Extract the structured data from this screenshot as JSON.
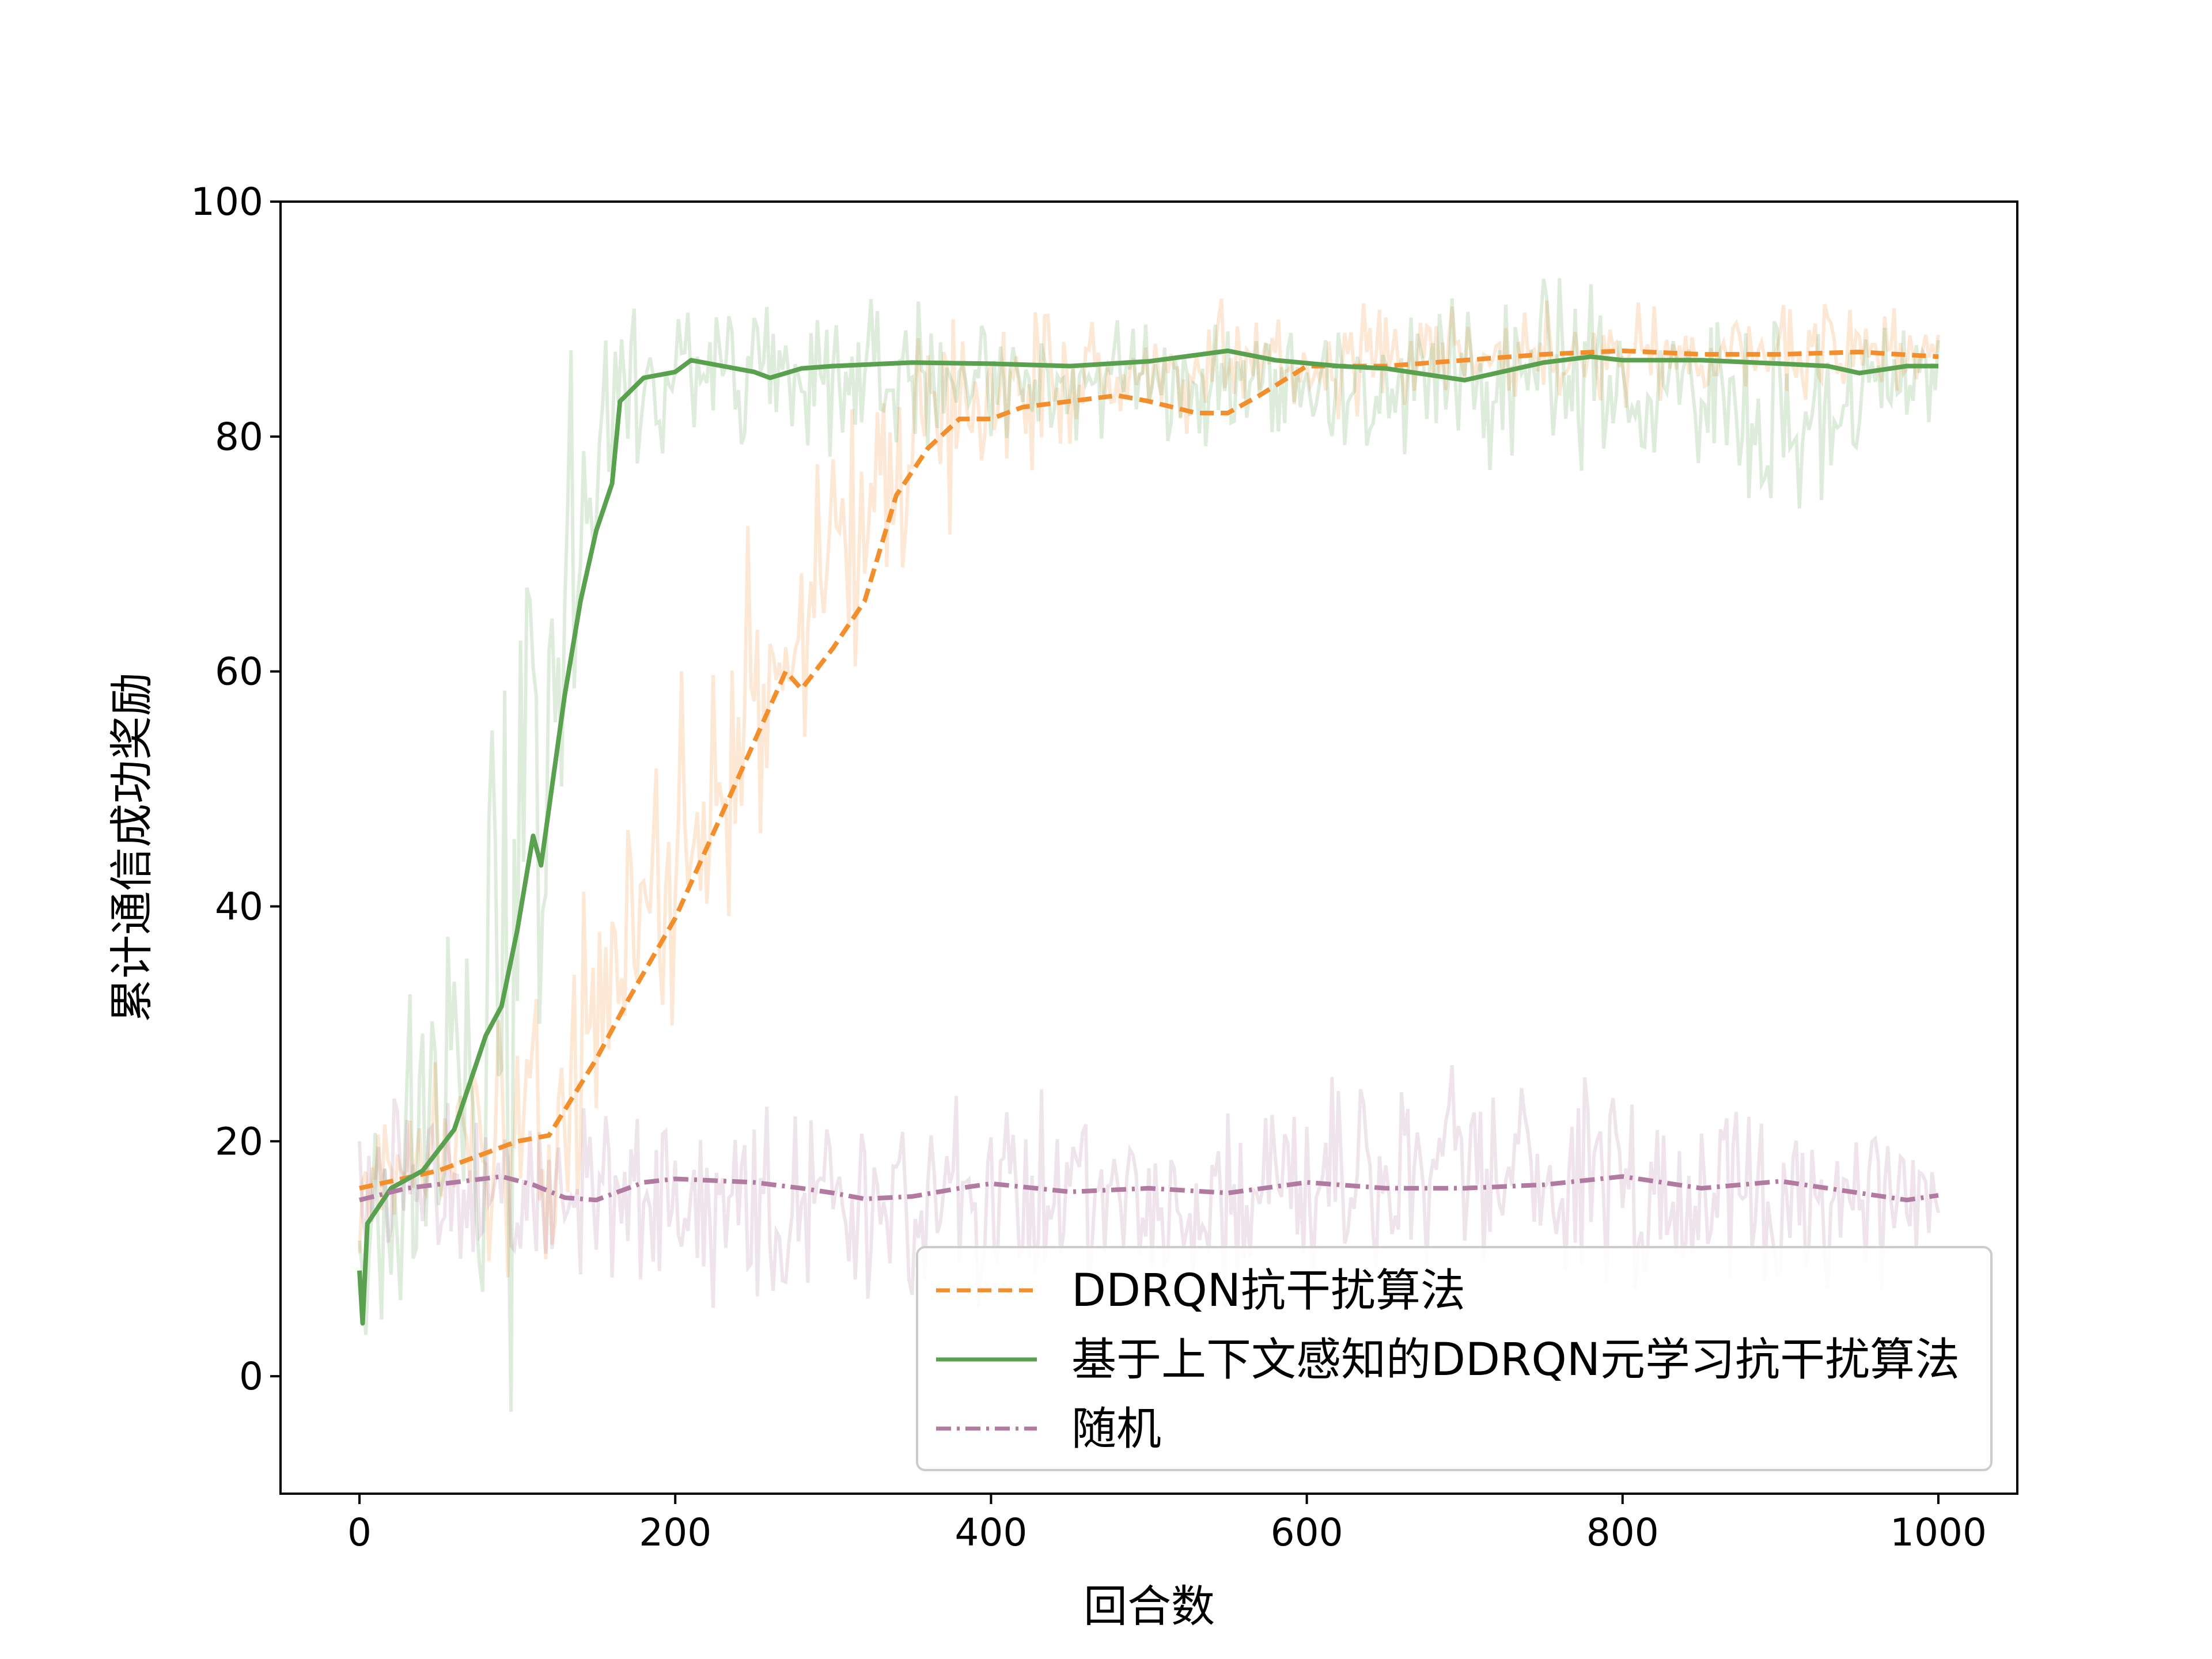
{
  "chart_data": {
    "type": "line",
    "title": "",
    "xlabel": "回合数",
    "ylabel": "累计通信成功奖励",
    "xlim": [
      -50,
      1050
    ],
    "ylim": [
      -10,
      100
    ],
    "xticks": [
      0,
      200,
      400,
      600,
      800,
      1000
    ],
    "yticks": [
      0,
      20,
      40,
      60,
      80,
      100
    ],
    "grid": false,
    "legend_position": "lower-right",
    "series": [
      {
        "name": "DDRQN抗干扰算法",
        "color": "#F28E2B",
        "style": "dashed",
        "smoothed": [
          [
            0,
            16
          ],
          [
            50,
            17.5
          ],
          [
            100,
            20
          ],
          [
            120,
            20.5
          ],
          [
            150,
            27
          ],
          [
            170,
            32
          ],
          [
            200,
            39
          ],
          [
            230,
            48
          ],
          [
            250,
            54
          ],
          [
            270,
            60
          ],
          [
            280,
            58.5
          ],
          [
            300,
            62
          ],
          [
            320,
            66
          ],
          [
            340,
            75
          ],
          [
            360,
            79
          ],
          [
            380,
            81.5
          ],
          [
            400,
            81.5
          ],
          [
            420,
            82.5
          ],
          [
            450,
            83
          ],
          [
            480,
            83.5
          ],
          [
            500,
            83
          ],
          [
            530,
            82
          ],
          [
            550,
            82
          ],
          [
            570,
            83.5
          ],
          [
            600,
            86
          ],
          [
            650,
            86
          ],
          [
            700,
            86.5
          ],
          [
            750,
            87
          ],
          [
            800,
            87.3
          ],
          [
            850,
            87
          ],
          [
            900,
            87
          ],
          [
            950,
            87.2
          ],
          [
            1000,
            86.8
          ]
        ],
        "raw_range": [
          [
            0,
            10,
            22
          ],
          [
            100,
            5,
            35
          ],
          [
            150,
            15,
            45
          ],
          [
            200,
            25,
            60
          ],
          [
            250,
            40,
            75
          ],
          [
            300,
            50,
            85
          ],
          [
            350,
            65,
            90
          ],
          [
            400,
            75,
            92
          ],
          [
            500,
            78,
            92
          ],
          [
            600,
            80,
            92
          ],
          [
            700,
            82,
            92
          ],
          [
            800,
            82,
            92
          ],
          [
            900,
            82,
            92
          ],
          [
            1000,
            83,
            91
          ]
        ]
      },
      {
        "name": "基于上下文感知的DDRQN元学习抗干扰算法",
        "color": "#59A14F",
        "style": "solid",
        "smoothed": [
          [
            0,
            9
          ],
          [
            2,
            4.5
          ],
          [
            5,
            13
          ],
          [
            20,
            16
          ],
          [
            40,
            17.5
          ],
          [
            60,
            21
          ],
          [
            80,
            29
          ],
          [
            90,
            31.5
          ],
          [
            100,
            38
          ],
          [
            110,
            46
          ],
          [
            115,
            43.5
          ],
          [
            130,
            58
          ],
          [
            140,
            66
          ],
          [
            150,
            72
          ],
          [
            160,
            76
          ],
          [
            165,
            83
          ],
          [
            180,
            85
          ],
          [
            200,
            85.5
          ],
          [
            210,
            86.5
          ],
          [
            230,
            86
          ],
          [
            250,
            85.5
          ],
          [
            260,
            85
          ],
          [
            280,
            85.8
          ],
          [
            300,
            86
          ],
          [
            350,
            86.3
          ],
          [
            400,
            86.2
          ],
          [
            450,
            86
          ],
          [
            500,
            86.4
          ],
          [
            550,
            87.3
          ],
          [
            580,
            86.5
          ],
          [
            620,
            86
          ],
          [
            650,
            85.8
          ],
          [
            700,
            84.8
          ],
          [
            750,
            86.3
          ],
          [
            780,
            86.8
          ],
          [
            800,
            86.5
          ],
          [
            850,
            86.5
          ],
          [
            900,
            86.2
          ],
          [
            930,
            86
          ],
          [
            950,
            85.4
          ],
          [
            980,
            86
          ],
          [
            1000,
            86
          ]
        ],
        "raw_range": [
          [
            0,
            0,
            20
          ],
          [
            50,
            5,
            45
          ],
          [
            80,
            -10,
            70
          ],
          [
            110,
            -10,
            80
          ],
          [
            130,
            40,
            93
          ],
          [
            150,
            70,
            93
          ],
          [
            200,
            78,
            93
          ],
          [
            300,
            78,
            93
          ],
          [
            400,
            78,
            92
          ],
          [
            500,
            78,
            92
          ],
          [
            600,
            77,
            92
          ],
          [
            700,
            76,
            93
          ],
          [
            750,
            76,
            98
          ],
          [
            800,
            75,
            93
          ],
          [
            850,
            74,
            93
          ],
          [
            900,
            70,
            92
          ],
          [
            1000,
            79,
            91
          ]
        ]
      },
      {
        "name": "随机",
        "color": "#B07AA1",
        "style": "dashdot",
        "smoothed": [
          [
            0,
            15
          ],
          [
            30,
            16
          ],
          [
            60,
            16.5
          ],
          [
            90,
            17
          ],
          [
            110,
            16.3
          ],
          [
            130,
            15.2
          ],
          [
            150,
            15
          ],
          [
            180,
            16.5
          ],
          [
            200,
            16.8
          ],
          [
            250,
            16.5
          ],
          [
            280,
            16
          ],
          [
            300,
            15.6
          ],
          [
            320,
            15.1
          ],
          [
            350,
            15.3
          ],
          [
            380,
            16
          ],
          [
            400,
            16.4
          ],
          [
            450,
            15.7
          ],
          [
            500,
            16
          ],
          [
            550,
            15.6
          ],
          [
            600,
            16.5
          ],
          [
            650,
            16
          ],
          [
            700,
            16
          ],
          [
            750,
            16.3
          ],
          [
            800,
            17
          ],
          [
            850,
            16
          ],
          [
            900,
            16.6
          ],
          [
            950,
            15.6
          ],
          [
            980,
            15
          ],
          [
            1000,
            15.4
          ]
        ],
        "raw_range": [
          [
            0,
            8,
            24
          ],
          [
            200,
            5,
            25
          ],
          [
            400,
            5,
            25
          ],
          [
            600,
            5,
            26
          ],
          [
            700,
            4,
            28
          ],
          [
            800,
            6,
            26
          ],
          [
            1000,
            6,
            23
          ]
        ]
      }
    ]
  }
}
